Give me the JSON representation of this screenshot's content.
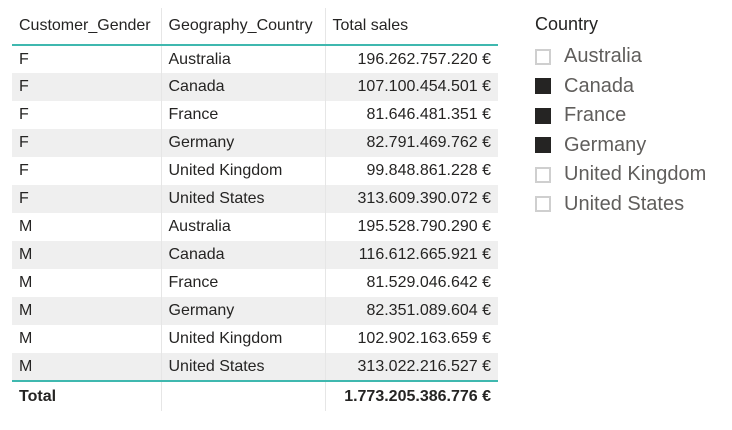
{
  "table": {
    "headers": [
      "Customer_Gender",
      "Geography_Country",
      "Total sales"
    ],
    "rows": [
      [
        "F",
        "Australia",
        "196.262.757.220 €"
      ],
      [
        "F",
        "Canada",
        "107.100.454.501 €"
      ],
      [
        "F",
        "France",
        "81.646.481.351 €"
      ],
      [
        "F",
        "Germany",
        "82.791.469.762 €"
      ],
      [
        "F",
        "United Kingdom",
        "99.848.861.228 €"
      ],
      [
        "F",
        "United States",
        "313.609.390.072 €"
      ],
      [
        "M",
        "Australia",
        "195.528.790.290 €"
      ],
      [
        "M",
        "Canada",
        "116.612.665.921 €"
      ],
      [
        "M",
        "France",
        "81.529.046.642 €"
      ],
      [
        "M",
        "Germany",
        "82.351.089.604 €"
      ],
      [
        "M",
        "United Kingdom",
        "102.902.163.659 €"
      ],
      [
        "M",
        "United States",
        "313.022.216.527 €"
      ]
    ],
    "total_label": "Total",
    "total_value": "1.773.205.386.776 €",
    "accent_color": "#3fb8af",
    "alt_row_color": "#efefef"
  },
  "slicer": {
    "title": "Country",
    "items": [
      {
        "label": "Australia",
        "checked": false
      },
      {
        "label": "Canada",
        "checked": true
      },
      {
        "label": "France",
        "checked": true
      },
      {
        "label": "Germany",
        "checked": true
      },
      {
        "label": "United Kingdom",
        "checked": false
      },
      {
        "label": "United States",
        "checked": false
      }
    ],
    "checked_color": "#252423",
    "unchecked_border_color": "#cfcfcf"
  }
}
